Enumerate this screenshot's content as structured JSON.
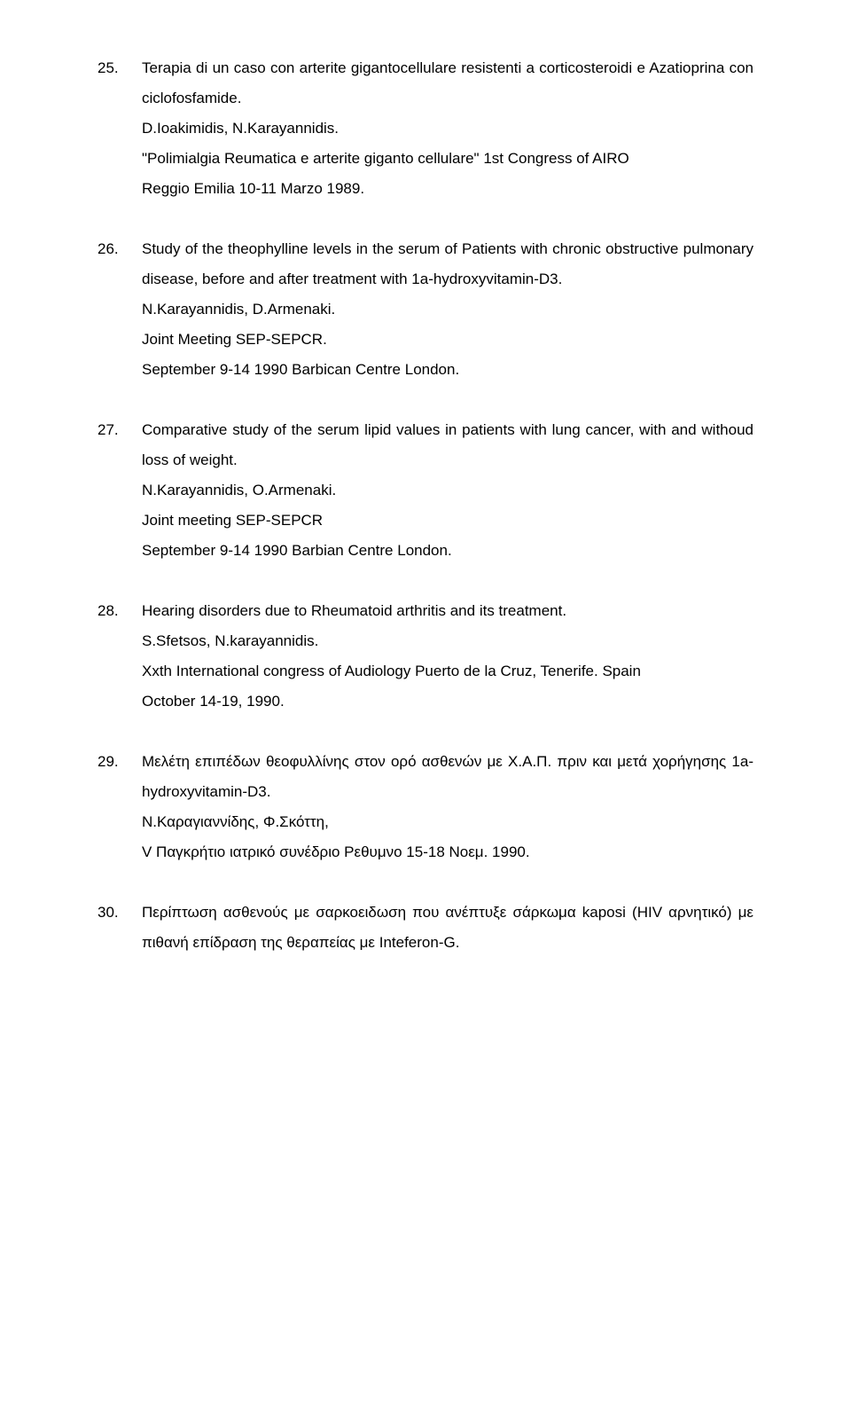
{
  "entries": [
    {
      "num": "25.",
      "title": "Terapia di un caso con arterite gigantocellulare resistenti a corticosteroidi e Azatioprina con ciclofosfamide.",
      "authors": "D.Ioakimidis, N.Karayannidis.",
      "venue": "\"Polimialgia Reumatica e arterite giganto cellulare\" 1st Congress of AIRO",
      "extra": "Reggio Emilia 10-11 Marzo 1989."
    },
    {
      "num": "26.",
      "title": "Study of the theophylline levels in the serum of Patients with chronic obstructive pulmonary disease, before and after treatment with 1a-hydroxyvitamin-D3.",
      "authors": "N.Karayannidis, D.Armenaki.",
      "venue": "Joint Meeting SEP-SEPCR.",
      "extra": "September 9-14 1990 Barbican Centre London."
    },
    {
      "num": "27.",
      "title": "Comparative study of the serum lipid values in patients with lung cancer, with and withoud loss of weight.",
      "authors": "N.Karayannidis, O.Armenaki.",
      "venue": "Joint meeting SEP-SEPCR",
      "extra": "September 9-14 1990 Barbian Centre London."
    },
    {
      "num": "28.",
      "title": "Hearing disorders due to Rheumatoid arthritis and its treatment.",
      "authors": "S.Sfetsos, N.karayannidis.",
      "venue": "Xxth International congress of Audiology Puerto de la Cruz, Tenerife. Spain",
      "extra": "October 14-19, 1990."
    },
    {
      "num": "29.",
      "title": "Μελέτη επιπέδων θεοφυλλίνης στον ορό ασθενών με Χ.Α.Π. πριν και μετά χορήγησης 1a-hydroxyvitamin-D3.",
      "authors": "Ν.Καραγιαννίδης, Φ.Σκόττη,",
      "venue": "V Παγκρήτιο ιατρικό συνέδριο Ρεθυμνο 15-18 Νοεμ. 1990."
    },
    {
      "num": "30.",
      "title": "Περίπτωση ασθενούς με σαρκοειδωση που ανέπτυξε σάρκωμα kaposi (HIV αρνητικό) με πιθανή επίδραση της θεραπείας με Inteferon-G."
    }
  ]
}
